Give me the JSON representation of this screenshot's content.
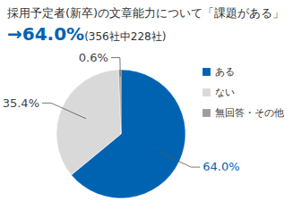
{
  "chart_data": {
    "type": "pie",
    "title": "採用予定者(新卒)の文章能力について「課題がある」",
    "subtitle": "→64.0%(356社中228社)",
    "categories": [
      "ある",
      "ない",
      "無回答・その他"
    ],
    "values": [
      64.0,
      35.4,
      0.6
    ],
    "value_labels": [
      "64.0%",
      "35.4%",
      "0.6%"
    ],
    "colors": [
      "#0063b2",
      "#d9d9d9",
      "#9e9e9e"
    ],
    "data_labels": true,
    "legend": "right"
  }
}
